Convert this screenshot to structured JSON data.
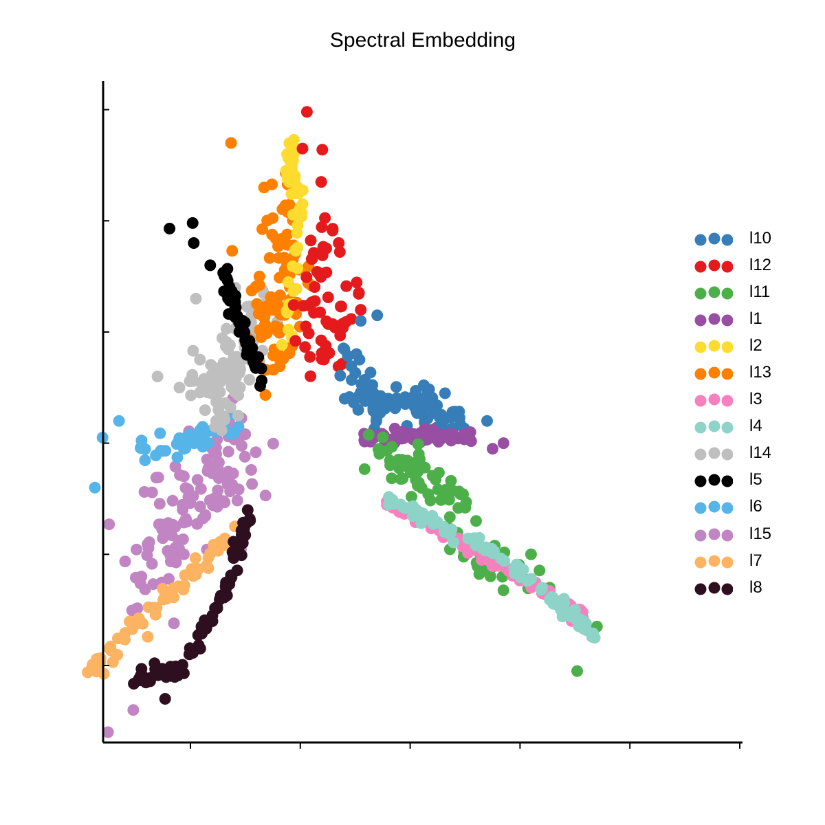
{
  "chart_data": {
    "type": "scatter",
    "title": "Spectral Embedding",
    "xlabel": "",
    "ylabel": "",
    "xlim": [
      -1.8,
      4.0
    ],
    "ylim": [
      -0.7,
      5.25
    ],
    "xticks": [
      -1,
      0,
      1,
      2,
      3,
      4
    ],
    "yticks": [
      0,
      1,
      2,
      3,
      4,
      5
    ],
    "tick_labels_visible": false,
    "grid": false,
    "legend": "right",
    "series": [
      {
        "name": "l10",
        "color": "#377eb8"
      },
      {
        "name": "l12",
        "color": "#e41a1c"
      },
      {
        "name": "l11",
        "color": "#4daf4a"
      },
      {
        "name": "l1",
        "color": "#984ea3"
      },
      {
        "name": "l2",
        "color": "#fddc2f"
      },
      {
        "name": "l13",
        "color": "#ff7f00"
      },
      {
        "name": "l3",
        "color": "#f781bf"
      },
      {
        "name": "l4",
        "color": "#8dd3c7"
      },
      {
        "name": "l14",
        "color": "#bfbfbf"
      },
      {
        "name": "l5",
        "color": "#000000"
      },
      {
        "name": "l6",
        "color": "#56b4e9"
      },
      {
        "name": "l15",
        "color": "#c085c2"
      },
      {
        "name": "l7",
        "color": "#fdb462"
      },
      {
        "name": "l8",
        "color": "#2d0f1f"
      }
    ]
  }
}
